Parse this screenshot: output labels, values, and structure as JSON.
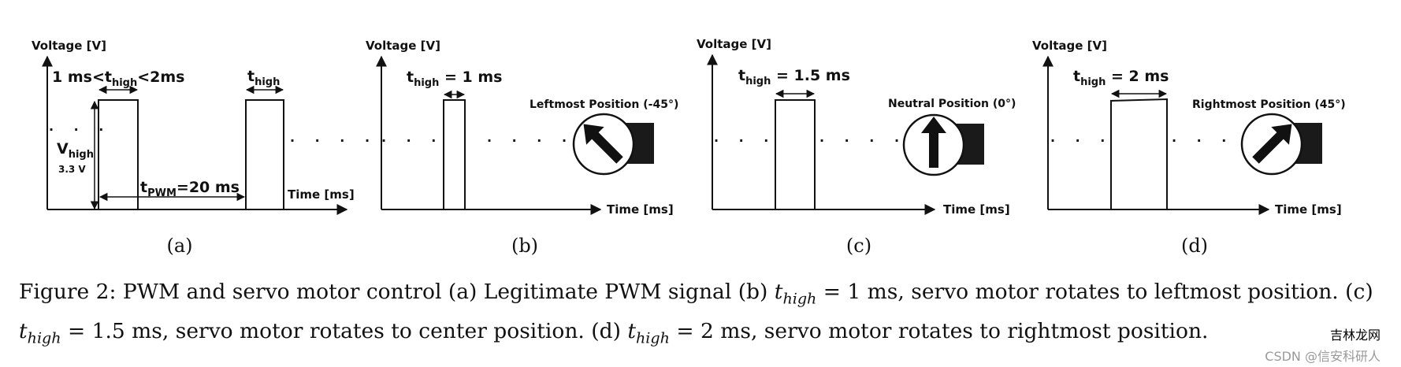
{
  "panels": [
    {
      "id": "a",
      "ylabel": "Voltage [V]",
      "xlabel": "Time [ms]",
      "thigh_text_main": "1 ms<t",
      "thigh_text_sub": "high",
      "thigh_text_tail": "<2ms",
      "thigh2_main": "t",
      "thigh2_sub": "high",
      "vhigh_main": "V",
      "vhigh_sub": "high",
      "vhigh_value": "3.3 V",
      "tpwm_main": "t",
      "tpwm_sub": "PWM",
      "tpwm_tail": "=20 ms",
      "letter": "(a)"
    },
    {
      "id": "b",
      "ylabel": "Voltage [V]",
      "xlabel": "Time [ms]",
      "thigh_main": "t",
      "thigh_sub": "high",
      "thigh_tail": " = 1 ms",
      "position_label": "Leftmost Position (-45°)",
      "letter": "(b)"
    },
    {
      "id": "c",
      "ylabel": "Voltage [V]",
      "xlabel": "Time [ms]",
      "thigh_main": "t",
      "thigh_sub": "high",
      "thigh_tail": " = 1.5 ms",
      "position_label": "Neutral Position (0°)",
      "letter": "(c)"
    },
    {
      "id": "d",
      "ylabel": "Voltage [V]",
      "xlabel": "Time [ms]",
      "thigh_main": "t",
      "thigh_sub": "high",
      "thigh_tail": " = 2 ms",
      "position_label": "Rightmost Position (45°)",
      "letter": "(d)"
    }
  ],
  "caption": {
    "prefix": "Figure 2: PWM and servo motor control (a) Legitimate PWM signal (b) ",
    "t": "t",
    "high": "high",
    "part_b": " = 1 ms, servo motor rotates to leftmost position. (c) ",
    "part_c": " = 1.5 ms, servo motor rotates to center position. (d) ",
    "part_d": " = 2 ms, servo motor rotates to rightmost position."
  },
  "watermark": {
    "brand1": "吉林",
    "brand2": "龙网",
    "credit": "CSDN @信安科研人"
  },
  "colors": {
    "ink": "#111111",
    "motor_body": "#1a1a1a",
    "watermark_red": "#c43a2b"
  }
}
